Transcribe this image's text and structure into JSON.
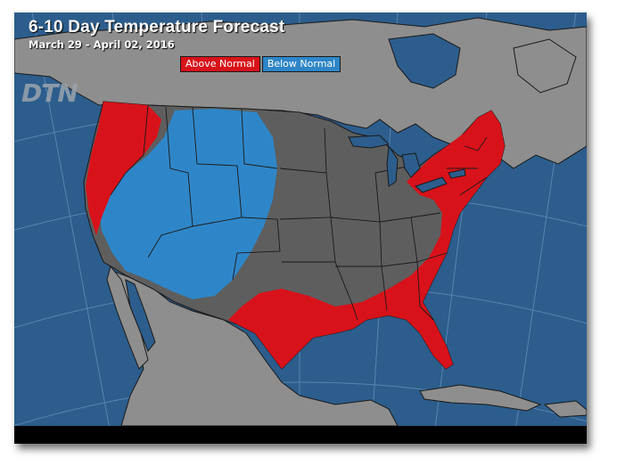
{
  "header": {
    "title": "6-10 Day Temperature Forecast",
    "subtitle": "March 29 - April 02, 2016"
  },
  "legend": {
    "above_label": "Above Normal",
    "below_label": "Below Normal"
  },
  "logo": "DTN",
  "colors": {
    "ocean": "#2c5d8c",
    "land": "#8e8e8e",
    "normal_zone": "#5e5e5e",
    "above_normal": "#d8121a",
    "below_normal": "#2e86c8",
    "borders": "#1a1a1a",
    "grid": "#7ea2c4"
  }
}
